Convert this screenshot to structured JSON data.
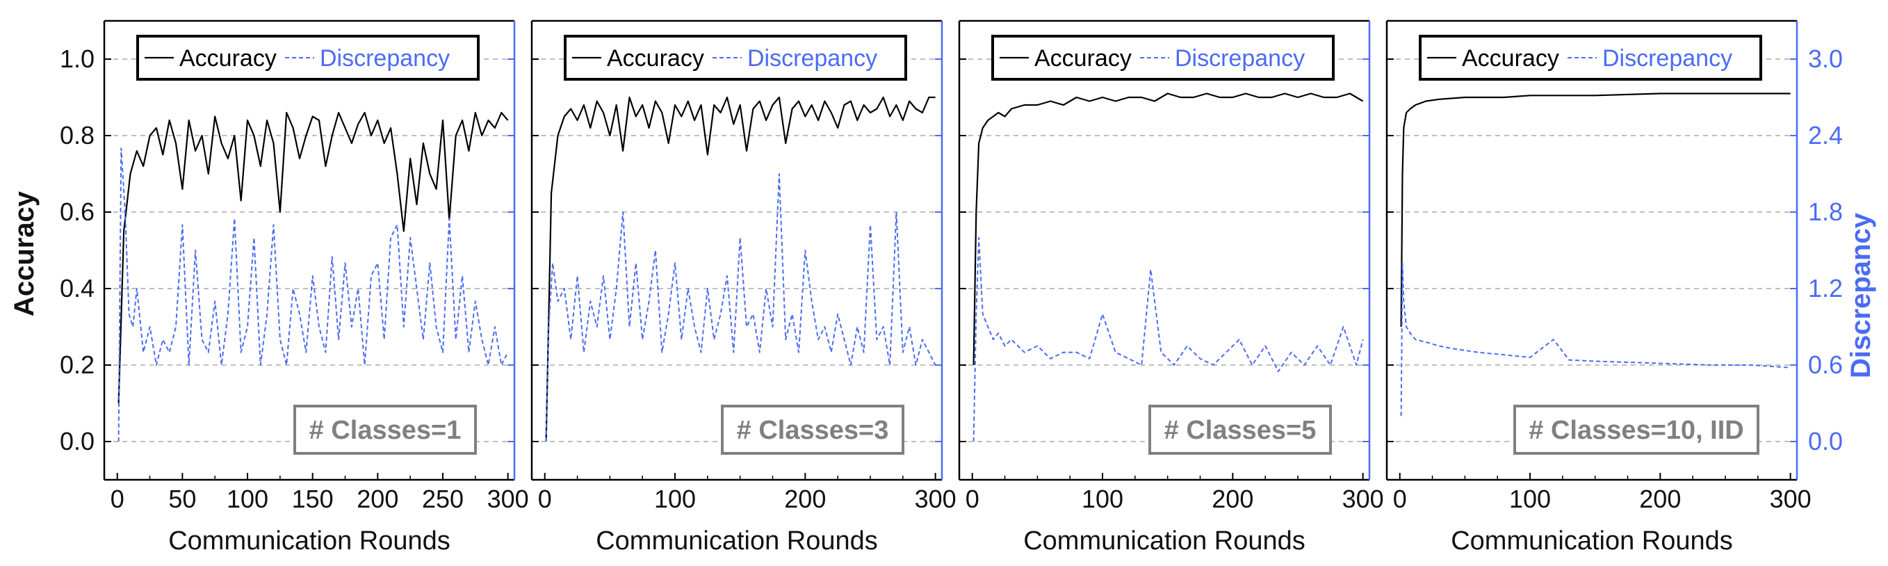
{
  "colors": {
    "accuracy": "#000000",
    "discrepancy": "#4b6bf5",
    "grid": "#a8a8a8",
    "badge": "#808080"
  },
  "figure": {
    "ylabel_left": "Accuracy",
    "ylabel_right": "Discrepancy",
    "left_ticks": [
      "0.0",
      "0.2",
      "0.4",
      "0.6",
      "0.8",
      "1.0"
    ],
    "right_ticks": [
      "0.0",
      "0.6",
      "1.2",
      "1.8",
      "2.4",
      "3.0"
    ]
  },
  "chart_data": [
    {
      "type": "line",
      "xlabel": "Communication Rounds",
      "ylabel": "Accuracy",
      "ylabel_right": "Discrepancy",
      "annotation": "# Classes=1",
      "legend": [
        "Accuracy",
        "Discrepancy"
      ],
      "legend_position": "top",
      "grid": "horizontal dashed",
      "xlim": [
        -10,
        305
      ],
      "ylim": [
        -0.1,
        1.1
      ],
      "ylim_right": [
        -0.3,
        3.3
      ],
      "xticks": [
        0,
        50,
        100,
        150,
        200,
        250,
        300
      ],
      "series": [
        {
          "name": "Accuracy",
          "axis": "left",
          "style": "solid",
          "x": [
            1,
            5,
            10,
            15,
            20,
            25,
            30,
            35,
            40,
            45,
            50,
            55,
            60,
            65,
            70,
            75,
            80,
            85,
            90,
            95,
            100,
            105,
            110,
            115,
            120,
            125,
            130,
            135,
            140,
            145,
            150,
            155,
            160,
            165,
            170,
            175,
            180,
            185,
            190,
            195,
            200,
            205,
            210,
            215,
            220,
            225,
            230,
            235,
            240,
            245,
            250,
            255,
            260,
            265,
            270,
            275,
            280,
            285,
            290,
            295,
            300
          ],
          "y": [
            0.1,
            0.55,
            0.7,
            0.76,
            0.72,
            0.8,
            0.82,
            0.75,
            0.84,
            0.78,
            0.66,
            0.84,
            0.76,
            0.8,
            0.7,
            0.85,
            0.78,
            0.74,
            0.8,
            0.63,
            0.84,
            0.8,
            0.72,
            0.84,
            0.78,
            0.6,
            0.86,
            0.82,
            0.74,
            0.8,
            0.85,
            0.84,
            0.72,
            0.8,
            0.86,
            0.82,
            0.78,
            0.83,
            0.86,
            0.8,
            0.84,
            0.78,
            0.82,
            0.7,
            0.55,
            0.74,
            0.62,
            0.78,
            0.7,
            0.66,
            0.84,
            0.58,
            0.8,
            0.84,
            0.76,
            0.86,
            0.8,
            0.84,
            0.82,
            0.86,
            0.84
          ]
        },
        {
          "name": "Discrepancy",
          "axis": "right",
          "style": "dashed",
          "x": [
            1,
            3,
            6,
            9,
            12,
            15,
            20,
            25,
            30,
            35,
            40,
            45,
            50,
            55,
            60,
            65,
            70,
            75,
            80,
            85,
            90,
            95,
            100,
            105,
            110,
            115,
            120,
            125,
            130,
            135,
            140,
            145,
            150,
            155,
            160,
            165,
            170,
            175,
            180,
            185,
            190,
            195,
            200,
            205,
            210,
            215,
            220,
            225,
            230,
            235,
            240,
            245,
            250,
            255,
            260,
            265,
            270,
            275,
            280,
            285,
            290,
            295,
            300
          ],
          "y": [
            0.0,
            2.3,
            1.8,
            1.0,
            0.9,
            1.2,
            0.7,
            0.9,
            0.6,
            0.8,
            0.7,
            0.9,
            1.7,
            0.6,
            1.5,
            0.8,
            0.7,
            1.1,
            0.6,
            1.0,
            1.75,
            0.7,
            0.9,
            1.6,
            0.6,
            1.0,
            1.7,
            0.8,
            0.6,
            1.2,
            1.0,
            0.7,
            1.3,
            0.9,
            0.7,
            1.45,
            0.8,
            1.4,
            0.9,
            1.2,
            0.6,
            1.3,
            1.4,
            0.8,
            1.6,
            1.7,
            0.9,
            1.6,
            1.2,
            0.8,
            1.4,
            0.9,
            0.7,
            1.75,
            0.8,
            1.3,
            0.7,
            1.1,
            0.8,
            0.6,
            0.9,
            0.6,
            0.7
          ]
        }
      ]
    },
    {
      "type": "line",
      "xlabel": "Communication Rounds",
      "ylabel": "Accuracy",
      "ylabel_right": "Discrepancy",
      "annotation": "# Classes=3",
      "legend": [
        "Accuracy",
        "Discrepancy"
      ],
      "legend_position": "top",
      "grid": "horizontal dashed",
      "xlim": [
        -10,
        305
      ],
      "ylim": [
        -0.1,
        1.1
      ],
      "ylim_right": [
        -0.3,
        3.3
      ],
      "xticks": [
        0,
        100,
        200,
        300
      ],
      "series": [
        {
          "name": "Accuracy",
          "axis": "left",
          "style": "solid",
          "x": [
            1,
            5,
            10,
            15,
            20,
            25,
            30,
            35,
            40,
            45,
            50,
            55,
            60,
            65,
            70,
            75,
            80,
            85,
            90,
            95,
            100,
            105,
            110,
            115,
            120,
            125,
            130,
            135,
            140,
            145,
            150,
            155,
            160,
            165,
            170,
            175,
            180,
            185,
            190,
            195,
            200,
            205,
            210,
            215,
            220,
            225,
            230,
            235,
            240,
            245,
            250,
            255,
            260,
            265,
            270,
            275,
            280,
            285,
            290,
            295,
            300
          ],
          "y": [
            0.0,
            0.65,
            0.8,
            0.85,
            0.87,
            0.84,
            0.88,
            0.82,
            0.89,
            0.86,
            0.8,
            0.88,
            0.76,
            0.9,
            0.85,
            0.88,
            0.82,
            0.89,
            0.86,
            0.78,
            0.88,
            0.85,
            0.89,
            0.84,
            0.88,
            0.75,
            0.88,
            0.86,
            0.9,
            0.83,
            0.88,
            0.76,
            0.87,
            0.89,
            0.84,
            0.88,
            0.9,
            0.78,
            0.87,
            0.89,
            0.85,
            0.88,
            0.84,
            0.89,
            0.86,
            0.82,
            0.88,
            0.89,
            0.84,
            0.88,
            0.86,
            0.87,
            0.9,
            0.85,
            0.88,
            0.84,
            0.89,
            0.87,
            0.86,
            0.9,
            0.9
          ]
        },
        {
          "name": "Discrepancy",
          "axis": "right",
          "style": "dashed",
          "x": [
            1,
            3,
            6,
            10,
            15,
            20,
            25,
            30,
            35,
            40,
            45,
            50,
            55,
            60,
            65,
            70,
            75,
            80,
            85,
            90,
            95,
            100,
            105,
            110,
            115,
            120,
            125,
            130,
            135,
            140,
            145,
            150,
            155,
            160,
            165,
            170,
            175,
            180,
            185,
            190,
            195,
            200,
            205,
            210,
            215,
            220,
            225,
            230,
            235,
            240,
            245,
            250,
            255,
            260,
            265,
            270,
            275,
            280,
            285,
            290,
            295,
            300
          ],
          "y": [
            0.0,
            0.9,
            1.4,
            1.1,
            1.2,
            0.8,
            1.3,
            0.7,
            1.1,
            0.9,
            1.3,
            0.8,
            1.2,
            1.8,
            0.9,
            1.4,
            0.8,
            1.1,
            1.5,
            0.7,
            1.0,
            1.4,
            0.8,
            1.2,
            0.9,
            0.7,
            1.2,
            0.8,
            1.0,
            1.3,
            0.7,
            1.6,
            0.9,
            1.0,
            0.7,
            1.2,
            0.9,
            2.1,
            0.8,
            1.0,
            0.7,
            1.5,
            1.1,
            0.8,
            0.9,
            0.7,
            1.0,
            0.8,
            0.6,
            0.9,
            0.7,
            1.7,
            0.8,
            0.9,
            0.6,
            1.8,
            0.7,
            0.9,
            0.6,
            0.8,
            0.7,
            0.6
          ]
        }
      ]
    },
    {
      "type": "line",
      "xlabel": "Communication Rounds",
      "ylabel": "Accuracy",
      "ylabel_right": "Discrepancy",
      "annotation": "# Classes=5",
      "legend": [
        "Accuracy",
        "Discrepancy"
      ],
      "legend_position": "top",
      "grid": "horizontal dashed",
      "xlim": [
        -10,
        305
      ],
      "ylim": [
        -0.1,
        1.1
      ],
      "ylim_right": [
        -0.3,
        3.3
      ],
      "xticks": [
        0,
        100,
        200,
        300
      ],
      "series": [
        {
          "name": "Accuracy",
          "axis": "left",
          "style": "solid",
          "x": [
            1,
            3,
            5,
            8,
            12,
            16,
            20,
            25,
            30,
            40,
            50,
            60,
            70,
            80,
            90,
            100,
            110,
            120,
            130,
            140,
            150,
            160,
            170,
            180,
            190,
            200,
            210,
            220,
            230,
            240,
            250,
            260,
            270,
            280,
            290,
            300
          ],
          "y": [
            0.2,
            0.6,
            0.78,
            0.82,
            0.84,
            0.85,
            0.86,
            0.85,
            0.87,
            0.88,
            0.88,
            0.89,
            0.88,
            0.9,
            0.89,
            0.9,
            0.89,
            0.9,
            0.9,
            0.89,
            0.91,
            0.9,
            0.9,
            0.91,
            0.9,
            0.9,
            0.91,
            0.9,
            0.9,
            0.91,
            0.9,
            0.91,
            0.9,
            0.9,
            0.91,
            0.89
          ]
        },
        {
          "name": "Discrepancy",
          "axis": "right",
          "style": "dashed",
          "x": [
            1,
            3,
            5,
            8,
            12,
            16,
            20,
            25,
            30,
            40,
            50,
            60,
            70,
            80,
            90,
            100,
            110,
            120,
            130,
            137,
            145,
            155,
            165,
            175,
            185,
            195,
            205,
            215,
            225,
            235,
            245,
            255,
            265,
            275,
            285,
            295,
            300
          ],
          "y": [
            0.0,
            1.0,
            1.6,
            1.0,
            0.9,
            0.8,
            0.85,
            0.75,
            0.8,
            0.7,
            0.75,
            0.65,
            0.7,
            0.7,
            0.65,
            1.0,
            0.7,
            0.65,
            0.6,
            1.35,
            0.7,
            0.6,
            0.75,
            0.65,
            0.6,
            0.7,
            0.8,
            0.6,
            0.75,
            0.55,
            0.7,
            0.6,
            0.75,
            0.6,
            0.9,
            0.6,
            0.8
          ]
        }
      ]
    },
    {
      "type": "line",
      "xlabel": "Communication Rounds",
      "ylabel": "Accuracy",
      "ylabel_right": "Discrepancy",
      "annotation": "# Classes=10, IID",
      "legend": [
        "Accuracy",
        "Discrepancy"
      ],
      "legend_position": "top",
      "grid": "horizontal dashed",
      "xlim": [
        -10,
        305
      ],
      "ylim": [
        -0.1,
        1.1
      ],
      "ylim_right": [
        -0.3,
        3.3
      ],
      "xticks": [
        0,
        100,
        200,
        300
      ],
      "series": [
        {
          "name": "Accuracy",
          "axis": "left",
          "style": "solid",
          "x": [
            1,
            2,
            3,
            5,
            8,
            12,
            20,
            30,
            50,
            80,
            100,
            150,
            200,
            250,
            300
          ],
          "y": [
            0.3,
            0.7,
            0.82,
            0.86,
            0.87,
            0.88,
            0.89,
            0.895,
            0.9,
            0.9,
            0.905,
            0.905,
            0.91,
            0.91,
            0.91
          ]
        },
        {
          "name": "Discrepancy",
          "axis": "right",
          "style": "dashed",
          "x": [
            1,
            2,
            3,
            5,
            8,
            12,
            20,
            30,
            40,
            60,
            80,
            100,
            118,
            130,
            150,
            180,
            210,
            240,
            270,
            300
          ],
          "y": [
            0.2,
            1.4,
            1.1,
            0.9,
            0.85,
            0.8,
            0.78,
            0.75,
            0.73,
            0.7,
            0.68,
            0.66,
            0.8,
            0.64,
            0.63,
            0.62,
            0.61,
            0.6,
            0.6,
            0.58
          ]
        }
      ]
    }
  ]
}
